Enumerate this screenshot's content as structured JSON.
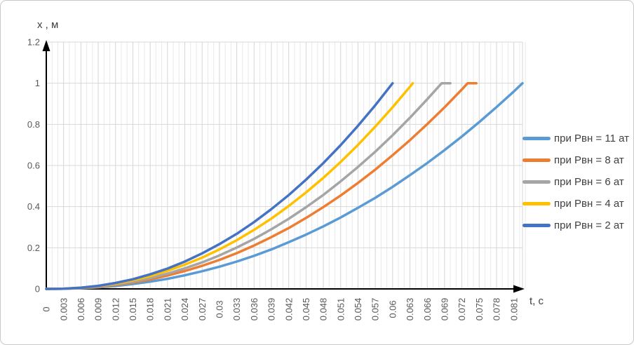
{
  "figure": {
    "y_axis_label": "х , м",
    "x_axis_label": "t, c",
    "background": "#ffffff",
    "border_color": "#c9c9c9",
    "axis_color": "#000000",
    "tick_label_color": "#595959",
    "axis_title_color": "#404040",
    "grid_minor_color": "#e9e9e9",
    "grid_major_color": "#d5d5d5",
    "grid_horizontal_color": "#d9d9d9"
  },
  "chart_data": {
    "type": "line",
    "title": "",
    "xlabel": "t, c",
    "ylabel": "х , м",
    "xlim": [
      0,
      0.0825
    ],
    "ylim": [
      0,
      1.2
    ],
    "grid": true,
    "x_minor_step": 0.001,
    "legend_position": "right",
    "x_tick_labels": [
      "0",
      "0.003",
      "0.006",
      "0.009",
      "0.012",
      "0.015",
      "0.018",
      "0.021",
      "0.024",
      "0.027",
      "0.03",
      "0.033",
      "0.036",
      "0.039",
      "0.042",
      "0.045",
      "0.048",
      "0.051",
      "0.054",
      "0.057",
      "0.06",
      "0.063",
      "0.066",
      "0.069",
      "0.072",
      "0.075",
      "0.078",
      "0.081"
    ],
    "x_tick_values": [
      0,
      0.003,
      0.006,
      0.009,
      0.012,
      0.015,
      0.018,
      0.021,
      0.024,
      0.027,
      0.03,
      0.033,
      0.036,
      0.039,
      0.042,
      0.045,
      0.048,
      0.051,
      0.054,
      0.057,
      0.06,
      0.063,
      0.066,
      0.069,
      0.072,
      0.075,
      0.078,
      0.081
    ],
    "y_tick_labels": [
      "0",
      "0.2",
      "0.4",
      "0.6",
      "0.8",
      "1",
      "1.2"
    ],
    "y_tick_values": [
      0,
      0.2,
      0.4,
      0.6,
      0.8,
      1,
      1.2
    ],
    "series": [
      {
        "name": "при Рвн = 11 ат",
        "color": "#5B9BD5",
        "points": [
          [
            0,
            0
          ],
          [
            0.003,
            0.001
          ],
          [
            0.006,
            0.003
          ],
          [
            0.009,
            0.008
          ],
          [
            0.012,
            0.014
          ],
          [
            0.015,
            0.024
          ],
          [
            0.018,
            0.035
          ],
          [
            0.021,
            0.049
          ],
          [
            0.024,
            0.066
          ],
          [
            0.027,
            0.086
          ],
          [
            0.03,
            0.108
          ],
          [
            0.033,
            0.133
          ],
          [
            0.036,
            0.161
          ],
          [
            0.039,
            0.192
          ],
          [
            0.042,
            0.227
          ],
          [
            0.045,
            0.264
          ],
          [
            0.048,
            0.304
          ],
          [
            0.051,
            0.347
          ],
          [
            0.054,
            0.394
          ],
          [
            0.057,
            0.443
          ],
          [
            0.06,
            0.496
          ],
          [
            0.063,
            0.553
          ],
          [
            0.066,
            0.612
          ],
          [
            0.069,
            0.675
          ],
          [
            0.072,
            0.741
          ],
          [
            0.075,
            0.811
          ],
          [
            0.078,
            0.884
          ],
          [
            0.081,
            0.96
          ],
          [
            0.0825,
            1
          ]
        ]
      },
      {
        "name": "при Рвн = 8 ат",
        "color": "#ED7D31",
        "points": [
          [
            0,
            0
          ],
          [
            0.003,
            0.001
          ],
          [
            0.006,
            0.004
          ],
          [
            0.009,
            0.01
          ],
          [
            0.012,
            0.019
          ],
          [
            0.015,
            0.031
          ],
          [
            0.018,
            0.046
          ],
          [
            0.021,
            0.065
          ],
          [
            0.024,
            0.087
          ],
          [
            0.027,
            0.112
          ],
          [
            0.03,
            0.141
          ],
          [
            0.033,
            0.174
          ],
          [
            0.036,
            0.211
          ],
          [
            0.039,
            0.252
          ],
          [
            0.042,
            0.296
          ],
          [
            0.045,
            0.345
          ],
          [
            0.048,
            0.398
          ],
          [
            0.051,
            0.454
          ],
          [
            0.054,
            0.515
          ],
          [
            0.057,
            0.58
          ],
          [
            0.06,
            0.65
          ],
          [
            0.063,
            0.723
          ],
          [
            0.066,
            0.801
          ],
          [
            0.069,
            0.883
          ],
          [
            0.072,
            0.97
          ],
          [
            0.073,
            1
          ],
          [
            0.0745,
            1
          ]
        ]
      },
      {
        "name": "при Рвн = 6 ат",
        "color": "#A5A5A5",
        "points": [
          [
            0,
            0
          ],
          [
            0.003,
            0.001
          ],
          [
            0.006,
            0.005
          ],
          [
            0.009,
            0.012
          ],
          [
            0.012,
            0.022
          ],
          [
            0.015,
            0.035
          ],
          [
            0.018,
            0.053
          ],
          [
            0.021,
            0.074
          ],
          [
            0.024,
            0.1
          ],
          [
            0.027,
            0.129
          ],
          [
            0.03,
            0.163
          ],
          [
            0.033,
            0.201
          ],
          [
            0.036,
            0.243
          ],
          [
            0.039,
            0.29
          ],
          [
            0.042,
            0.341
          ],
          [
            0.045,
            0.397
          ],
          [
            0.048,
            0.457
          ],
          [
            0.051,
            0.523
          ],
          [
            0.054,
            0.593
          ],
          [
            0.057,
            0.667
          ],
          [
            0.06,
            0.747
          ],
          [
            0.063,
            0.832
          ],
          [
            0.066,
            0.922
          ],
          [
            0.0685,
            1
          ],
          [
            0.07,
            1
          ]
        ]
      },
      {
        "name": "при Рвн = 4 ат",
        "color": "#FFC000",
        "points": [
          [
            0,
            0
          ],
          [
            0.003,
            0.001
          ],
          [
            0.006,
            0.006
          ],
          [
            0.009,
            0.014
          ],
          [
            0.012,
            0.026
          ],
          [
            0.015,
            0.042
          ],
          [
            0.018,
            0.062
          ],
          [
            0.021,
            0.088
          ],
          [
            0.024,
            0.118
          ],
          [
            0.027,
            0.152
          ],
          [
            0.03,
            0.192
          ],
          [
            0.033,
            0.237
          ],
          [
            0.036,
            0.287
          ],
          [
            0.039,
            0.342
          ],
          [
            0.042,
            0.403
          ],
          [
            0.045,
            0.469
          ],
          [
            0.048,
            0.54
          ],
          [
            0.051,
            0.617
          ],
          [
            0.054,
            0.7
          ],
          [
            0.057,
            0.789
          ],
          [
            0.06,
            0.883
          ],
          [
            0.063,
            0.983
          ],
          [
            0.0635,
            1
          ]
        ]
      },
      {
        "name": "при Рвн = 2 ат",
        "color": "#4472C4",
        "points": [
          [
            0,
            0
          ],
          [
            0.003,
            0.001
          ],
          [
            0.006,
            0.006
          ],
          [
            0.009,
            0.015
          ],
          [
            0.012,
            0.029
          ],
          [
            0.015,
            0.047
          ],
          [
            0.018,
            0.071
          ],
          [
            0.021,
            0.099
          ],
          [
            0.024,
            0.133
          ],
          [
            0.027,
            0.173
          ],
          [
            0.03,
            0.218
          ],
          [
            0.033,
            0.268
          ],
          [
            0.036,
            0.325
          ],
          [
            0.039,
            0.388
          ],
          [
            0.042,
            0.456
          ],
          [
            0.045,
            0.531
          ],
          [
            0.048,
            0.612
          ],
          [
            0.051,
            0.699
          ],
          [
            0.054,
            0.793
          ],
          [
            0.057,
            0.893
          ],
          [
            0.06,
            1
          ]
        ]
      }
    ]
  }
}
